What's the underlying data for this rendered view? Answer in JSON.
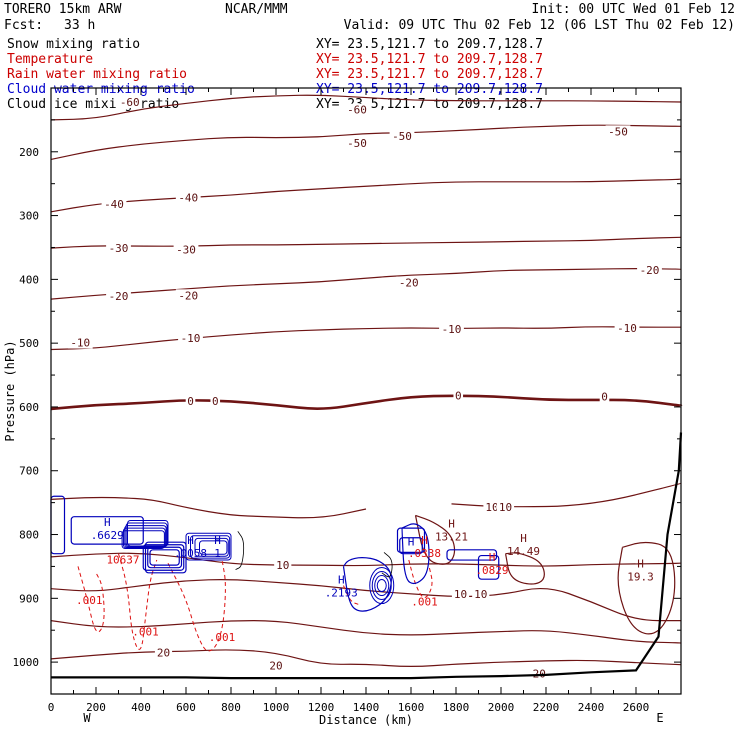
{
  "header": {
    "model_line": "TORERO  15km ARW",
    "center": "NCAR/MMM",
    "init": "Init: 00 UTC Wed 01 Feb 12",
    "fcst_label": "Fcst:",
    "fcst_value": "33 h",
    "valid": "Valid: 09 UTC Thu 02 Feb 12 (06 LST Thu 02 Feb 12)"
  },
  "legend": [
    {
      "label": "Snow mixing ratio",
      "color": "#000000",
      "xy": "XY=  23.5,121.7 to 209.7,128.7"
    },
    {
      "label": "Temperature",
      "color": "#cc0000",
      "xy": "XY=  23.5,121.7 to 209.7,128.7"
    },
    {
      "label": "Rain water mixing ratio",
      "color": "#cc0000",
      "xy": "XY=  23.5,121.7 to 209.7,128.7"
    },
    {
      "label": "Cloud water mixing ratio",
      "color": "#0000cc",
      "xy": "XY=  23.5,121.7 to 209.7,128.7"
    },
    {
      "label": "Cloud ice mixing ratio",
      "color": "#000000",
      "xy": "XY=  23.5,121.7 to 209.7,128.7"
    }
  ],
  "colors": {
    "temperature": "#6e1414",
    "freezing": "#6e1414",
    "rain": "#dd1111",
    "cloud": "#0000bb",
    "terrain": "#000000"
  },
  "chart_data": {
    "type": "contour",
    "xlabel": "Distance (km)",
    "ylabel": "Pressure (hPa)",
    "xlim": [
      0,
      2800
    ],
    "ylim": [
      1050,
      100
    ],
    "x_ticks": [
      "0",
      "200",
      "400",
      "600",
      "800",
      "1000",
      "1200",
      "1400",
      "1600",
      "1800",
      "2000",
      "2200",
      "2400",
      "2600"
    ],
    "x_tick_values": [
      0,
      200,
      400,
      600,
      800,
      1000,
      1200,
      1400,
      1600,
      1800,
      2000,
      2200,
      2400,
      2600
    ],
    "y_ticks": [
      "200",
      "300",
      "400",
      "500",
      "600",
      "700",
      "800",
      "900",
      "1000"
    ],
    "y_tick_values": [
      200,
      300,
      400,
      500,
      600,
      700,
      800,
      900,
      1000
    ],
    "x_endpoints": [
      "W",
      "E"
    ],
    "temperature_contours": [
      {
        "value": -60,
        "label": "-60",
        "x": [
          0,
          200,
          400,
          600,
          800,
          1000,
          1200,
          1400,
          1600,
          1800,
          2000,
          2200,
          2400,
          2600,
          2800
        ],
        "p": [
          150,
          148,
          133,
          124,
          116,
          112,
          111,
          115,
          119,
          120,
          120,
          120,
          120,
          121,
          122
        ],
        "labels_at": [
          [
            350,
            143
          ],
          [
            1350,
            129
          ]
        ]
      },
      {
        "value": -50,
        "label": "-50",
        "x": [
          0,
          200,
          400,
          600,
          800,
          1000,
          1200,
          1400,
          1600,
          1800,
          2000,
          2200,
          2400,
          2600,
          2800
        ],
        "p": [
          212,
          197,
          188,
          182,
          177,
          178,
          177,
          171,
          170,
          167,
          163,
          160,
          158,
          159,
          160
        ],
        "labels_at": [
          [
            1330,
            170
          ],
          [
            1590,
            171
          ],
          [
            2530,
            163
          ]
        ]
      },
      {
        "value": -40,
        "label": "-40",
        "x": [
          0,
          200,
          400,
          600,
          800,
          1000,
          1200,
          1400,
          1600,
          1800,
          2000,
          2200,
          2400,
          2600,
          2800
        ],
        "p": [
          294,
          282,
          276,
          272,
          268,
          262,
          258,
          254,
          250,
          247,
          247,
          247,
          247,
          245,
          243
        ]
      },
      {
        "value": -30,
        "label": "-30",
        "x": [
          0,
          200,
          400,
          600,
          800,
          1000,
          1200,
          1400,
          1600,
          1800,
          2000,
          2200,
          2400,
          2600,
          2800
        ],
        "p": [
          351,
          347,
          348,
          348,
          346,
          346,
          345,
          344,
          343,
          342,
          341,
          340,
          339,
          336,
          334
        ],
        "labels_at": [
          [
            250,
            351
          ]
        ]
      },
      {
        "value": -20,
        "label": "-20",
        "x": [
          0,
          200,
          400,
          600,
          800,
          1000,
          1200,
          1400,
          1600,
          1800,
          2000,
          2200,
          2400,
          2600,
          2800
        ],
        "p": [
          431,
          425,
          420,
          415,
          410,
          407,
          404,
          398,
          393,
          391,
          386,
          385,
          384,
          383,
          384
        ],
        "labels_at": [
          [
            270,
            425
          ],
          [
            610,
            415
          ],
          [
            1570,
            393
          ],
          [
            2560,
            381
          ]
        ]
      },
      {
        "value": -10,
        "label": "-10",
        "x": [
          0,
          200,
          400,
          600,
          800,
          1000,
          1200,
          1400,
          1600,
          1800,
          2000,
          2200,
          2400,
          2600,
          2800
        ],
        "p": [
          510,
          508,
          500,
          493,
          487,
          482,
          479,
          477,
          476,
          477,
          476,
          477,
          474,
          475,
          475
        ],
        "labels_at": [
          [
            160,
            509
          ],
          [
            640,
            500
          ],
          [
            1760,
            476
          ],
          [
            2560,
            475
          ]
        ]
      },
      {
        "value": 0,
        "label": "0",
        "x": [
          0,
          200,
          400,
          600,
          800,
          1000,
          1200,
          1400,
          1600,
          1800,
          2000,
          2200,
          2400,
          2600,
          2800
        ],
        "p": [
          603,
          597,
          594,
          589,
          591,
          597,
          605,
          594,
          584,
          582,
          584,
          589,
          589,
          589,
          598
        ],
        "labels_at": [
          [
            650,
            591
          ],
          [
            1810,
            577
          ],
          [
            2350,
            587
          ]
        ],
        "bold": true
      },
      {
        "value": 10,
        "label": "10",
        "x": [
          0,
          200,
          400,
          600,
          800,
          1000,
          1200,
          1400,
          1600,
          1800,
          2000,
          2200,
          2400,
          2600,
          2800
        ],
        "p": [
          835,
          830,
          829,
          836,
          846,
          848,
          848,
          849,
          846,
          846,
          848,
          850,
          847,
          846,
          845
        ],
        "labels_at": [
          [
            1020,
            845
          ],
          [
            1720,
            861
          ]
        ]
      },
      {
        "value": 20,
        "label": "20",
        "x": [
          0,
          200,
          400,
          600,
          800,
          1000,
          1200,
          1400,
          1600,
          1800,
          2000,
          2200,
          2400,
          2600,
          2800
        ],
        "p": [
          995,
          989,
          984,
          983,
          980,
          985,
          1004,
          1003,
          1008,
          1003,
          1000,
          998,
          997,
          1001,
          1004
        ],
        "labels_at": [
          [
            1000,
            979
          ]
        ]
      }
    ],
    "temperature_labels_extra": [
      {
        "x": 350,
        "p": 122,
        "text": "-60"
      },
      {
        "x": 1360,
        "p": 134,
        "text": "-60"
      },
      {
        "x": 1360,
        "p": 186,
        "text": "-50"
      },
      {
        "x": 1560,
        "p": 175,
        "text": "-50"
      },
      {
        "x": 2520,
        "p": 168,
        "text": "-50"
      },
      {
        "x": 280,
        "p": 282,
        "text": "-40"
      },
      {
        "x": 610,
        "p": 272,
        "text": "-40"
      },
      {
        "x": 300,
        "p": 351,
        "text": "-30"
      },
      {
        "x": 600,
        "p": 353,
        "text": "-30"
      },
      {
        "x": 300,
        "p": 426,
        "text": "-20"
      },
      {
        "x": 610,
        "p": 425,
        "text": "-20"
      },
      {
        "x": 1590,
        "p": 405,
        "text": "-20"
      },
      {
        "x": 2660,
        "p": 385,
        "text": "-20"
      },
      {
        "x": 130,
        "p": 499,
        "text": "-10"
      },
      {
        "x": 620,
        "p": 492,
        "text": "-10"
      },
      {
        "x": 1780,
        "p": 478,
        "text": "-10"
      },
      {
        "x": 2560,
        "p": 476,
        "text": "-10"
      },
      {
        "x": 620,
        "p": 591,
        "text": "0"
      },
      {
        "x": 730,
        "p": 591,
        "text": "0"
      },
      {
        "x": 1810,
        "p": 582,
        "text": "0"
      },
      {
        "x": 2460,
        "p": 584,
        "text": "0"
      },
      {
        "x": 1960,
        "p": 757,
        "text": "10"
      },
      {
        "x": 2020,
        "p": 757,
        "text": "10"
      },
      {
        "x": 1030,
        "p": 848,
        "text": "10"
      },
      {
        "x": 1820,
        "p": 893,
        "text": "10"
      },
      {
        "x": 1910,
        "p": 893,
        "text": "10"
      },
      {
        "x": 500,
        "p": 985,
        "text": "20"
      },
      {
        "x": 1000,
        "p": 1005,
        "text": "20"
      },
      {
        "x": 2170,
        "p": 1018,
        "text": "20"
      }
    ],
    "maxima": [
      {
        "x": 250,
        "p": 790,
        "mark": "H",
        "value": ".6629",
        "color": "cloud"
      },
      {
        "x": 320,
        "p": 828,
        "mark": "",
        "value": "10637",
        "color": "rain"
      },
      {
        "x": 620,
        "p": 818,
        "mark": "H",
        "value": ".0058",
        "color": "cloud"
      },
      {
        "x": 740,
        "p": 818,
        "mark": "H",
        "value": "1",
        "color": "cloud"
      },
      {
        "x": 1290,
        "p": 880,
        "mark": "H",
        "value": ".2193",
        "color": "cloud"
      },
      {
        "x": 1660,
        "p": 818,
        "mark": "H",
        "value": ".0338",
        "color": "rain"
      },
      {
        "x": 1600,
        "p": 820,
        "mark": "H",
        "value": "",
        "color": "cloud"
      },
      {
        "x": 1780,
        "p": 792,
        "mark": "H",
        "value": "13.21",
        "color": "temperature"
      },
      {
        "x": 2100,
        "p": 815,
        "mark": "H",
        "value": "14.49",
        "color": "temperature"
      },
      {
        "x": 2620,
        "p": 855,
        "mark": "H",
        "value": "19.3",
        "color": "temperature"
      },
      {
        "x": 1960,
        "p": 845,
        "mark": "H",
        "value": ".0829",
        "color": "rain"
      },
      {
        "x": 1660,
        "p": 894,
        "mark": "",
        "value": ".001",
        "color": "rain"
      },
      {
        "x": 170,
        "p": 892,
        "mark": "",
        "value": ".001",
        "color": "rain"
      },
      {
        "x": 420,
        "p": 941,
        "mark": "",
        "value": ".001",
        "color": "rain"
      },
      {
        "x": 760,
        "p": 950,
        "mark": "",
        "value": ".001",
        "color": "rain"
      }
    ],
    "terrain_surface": {
      "x": [
        0,
        200,
        400,
        600,
        800,
        1000,
        1200,
        1400,
        1600,
        1800,
        2000,
        2200,
        2400,
        2600,
        2700,
        2740,
        2790,
        2800
      ],
      "p": [
        1024,
        1024,
        1024,
        1024,
        1025,
        1025,
        1025,
        1025,
        1025,
        1023,
        1022,
        1020,
        1016,
        1013,
        960,
        800,
        700,
        640
      ]
    }
  }
}
